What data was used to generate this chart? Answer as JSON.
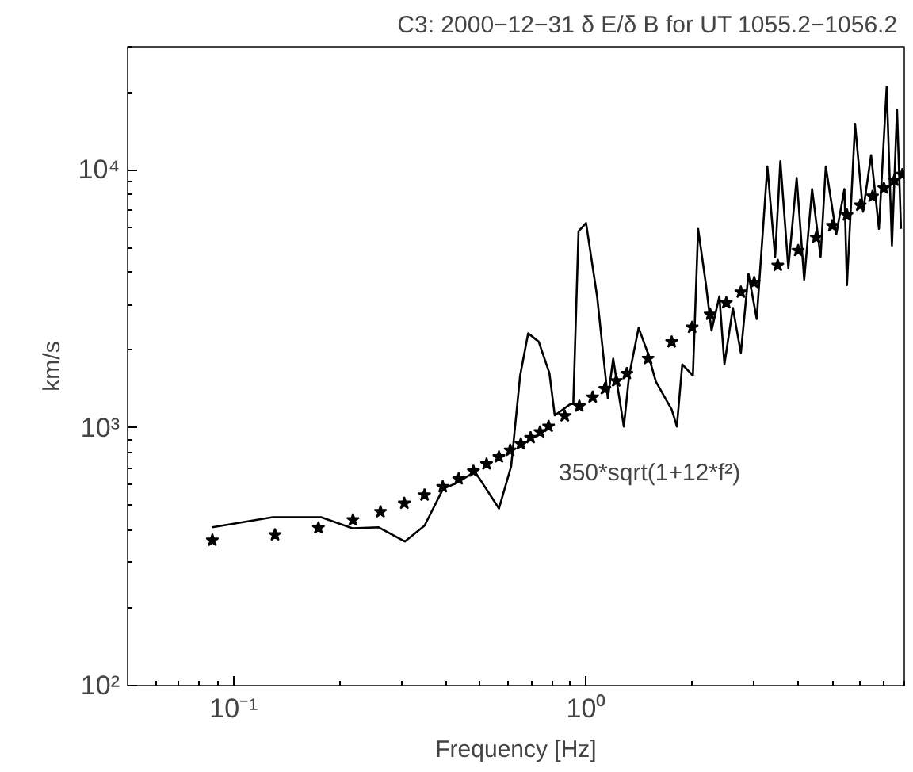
{
  "chart_data": {
    "type": "line",
    "title": "C3: 2000−12−31  δ E/δ B for UT 1055.2−1056.2",
    "xlabel": "Frequency [Hz]",
    "ylabel": "km/s",
    "log": "xy",
    "grid": false,
    "xlim": [
      0.05,
      8
    ],
    "ylim": [
      100,
      30000
    ],
    "xticks": [
      {
        "value": 0.1,
        "label": "10⁻¹"
      },
      {
        "value": 1,
        "label": "10⁰"
      }
    ],
    "yticks": [
      {
        "value": 100,
        "label": "10²"
      },
      {
        "value": 1000,
        "label": "10³"
      },
      {
        "value": 10000,
        "label": "10⁴"
      }
    ],
    "annotations": [
      "350*sqrt(1+12*f²)"
    ],
    "series": [
      {
        "color": "#000000",
        "line_style": "solid",
        "x": [
          0.087,
          0.129,
          0.177,
          0.218,
          0.258,
          0.306,
          0.348,
          0.393,
          0.429,
          0.484,
          0.566,
          0.613,
          0.65,
          0.685,
          0.734,
          0.787,
          0.815,
          0.904,
          0.92,
          0.952,
          1.0,
          1.075,
          1.153,
          1.194,
          1.28,
          1.325,
          1.41,
          1.497,
          1.577,
          1.75,
          1.81,
          1.875,
          2.01,
          2.08,
          2.19,
          2.27,
          2.39,
          2.47,
          2.61,
          2.75,
          2.89,
          3.05,
          3.27,
          3.44,
          3.56,
          3.75,
          3.96,
          4.16,
          4.38,
          4.63,
          4.79,
          5.13,
          5.41,
          5.5,
          5.8,
          6.11,
          6.44,
          6.78,
          7.13,
          7.38,
          7.63,
          7.83
        ],
        "values": [
          411,
          450,
          450,
          407,
          411,
          362,
          417,
          580,
          610,
          675,
          486,
          709,
          1592,
          2323,
          2155,
          1630,
          1117,
          1236,
          1236,
          5770,
          6220,
          3230,
          1300,
          1852,
          1010,
          1592,
          2440,
          1948,
          1512,
          1176,
          1010,
          1760,
          1592,
          5900,
          3570,
          2380,
          3230,
          1760,
          2915,
          1948,
          3950,
          2640,
          10300,
          4590,
          10800,
          4150,
          9300,
          3750,
          8420,
          4590,
          10300,
          5630,
          8420,
          3570,
          15070,
          6880,
          11400,
          5900,
          20900,
          5090,
          17100,
          5900
        ]
      },
      {
        "type": "scatter",
        "color": "#000000",
        "marker": "star",
        "x": [
          0.087,
          0.131,
          0.174,
          0.218,
          0.261,
          0.305,
          0.348,
          0.392,
          0.435,
          0.479,
          0.522,
          0.566,
          0.609,
          0.653,
          0.696,
          0.74,
          0.783,
          0.87,
          0.957,
          1.044,
          1.131,
          1.218,
          1.305,
          1.5,
          1.75,
          2.0,
          2.25,
          2.5,
          2.75,
          3.0,
          3.5,
          4.0,
          4.5,
          5.0,
          5.5,
          6.0,
          6.5,
          7.0,
          7.5,
          7.9
        ],
        "values": [
          366,
          384,
          409,
          439,
          472,
          509,
          548,
          590,
          633,
          678,
          723,
          770,
          817,
          866,
          914,
          963,
          1012,
          1111,
          1212,
          1313,
          1415,
          1518,
          1621,
          1852,
          2150,
          2450,
          2750,
          3051,
          3353,
          3654,
          4259,
          4862,
          5467,
          6073,
          6678,
          7283,
          7889,
          8495,
          9100,
          9584
        ]
      }
    ]
  }
}
